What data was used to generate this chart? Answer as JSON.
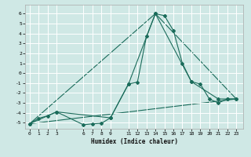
{
  "xlabel": "Humidex (Indice chaleur)",
  "background_color": "#cfe8e5",
  "grid_color": "#ffffff",
  "line_color": "#1a6b5a",
  "xlim": [
    -0.5,
    23.8
  ],
  "ylim": [
    -5.6,
    6.9
  ],
  "xticks": [
    0,
    1,
    2,
    3,
    6,
    7,
    8,
    9,
    11,
    12,
    13,
    14,
    15,
    16,
    17,
    18,
    19,
    20,
    21,
    22,
    23
  ],
  "yticks": [
    -5,
    -4,
    -3,
    -2,
    -1,
    0,
    1,
    2,
    3,
    4,
    5,
    6
  ],
  "series1_x": [
    0,
    1,
    2,
    3,
    6,
    7,
    8,
    9,
    11,
    12,
    13,
    14,
    15,
    16,
    17,
    18,
    19,
    20,
    21,
    22,
    23
  ],
  "series1_y": [
    -5.1,
    -4.55,
    -4.3,
    -3.9,
    -5.2,
    -5.1,
    -5.05,
    -4.5,
    -1.1,
    -0.9,
    3.7,
    6.0,
    5.8,
    4.3,
    1.0,
    -0.85,
    -1.1,
    -2.6,
    -3.0,
    -2.6,
    -2.6
  ],
  "series2_x": [
    0,
    3,
    9,
    11,
    14,
    18,
    21,
    22,
    23
  ],
  "series2_y": [
    -5.1,
    -3.9,
    -4.5,
    -1.1,
    6.0,
    -0.85,
    -2.6,
    -2.6,
    -2.6
  ],
  "series3_x": [
    0,
    23
  ],
  "series3_y": [
    -5.1,
    -2.6
  ],
  "series4_x": [
    0,
    14,
    23
  ],
  "series4_y": [
    -5.1,
    6.0,
    -2.6
  ]
}
